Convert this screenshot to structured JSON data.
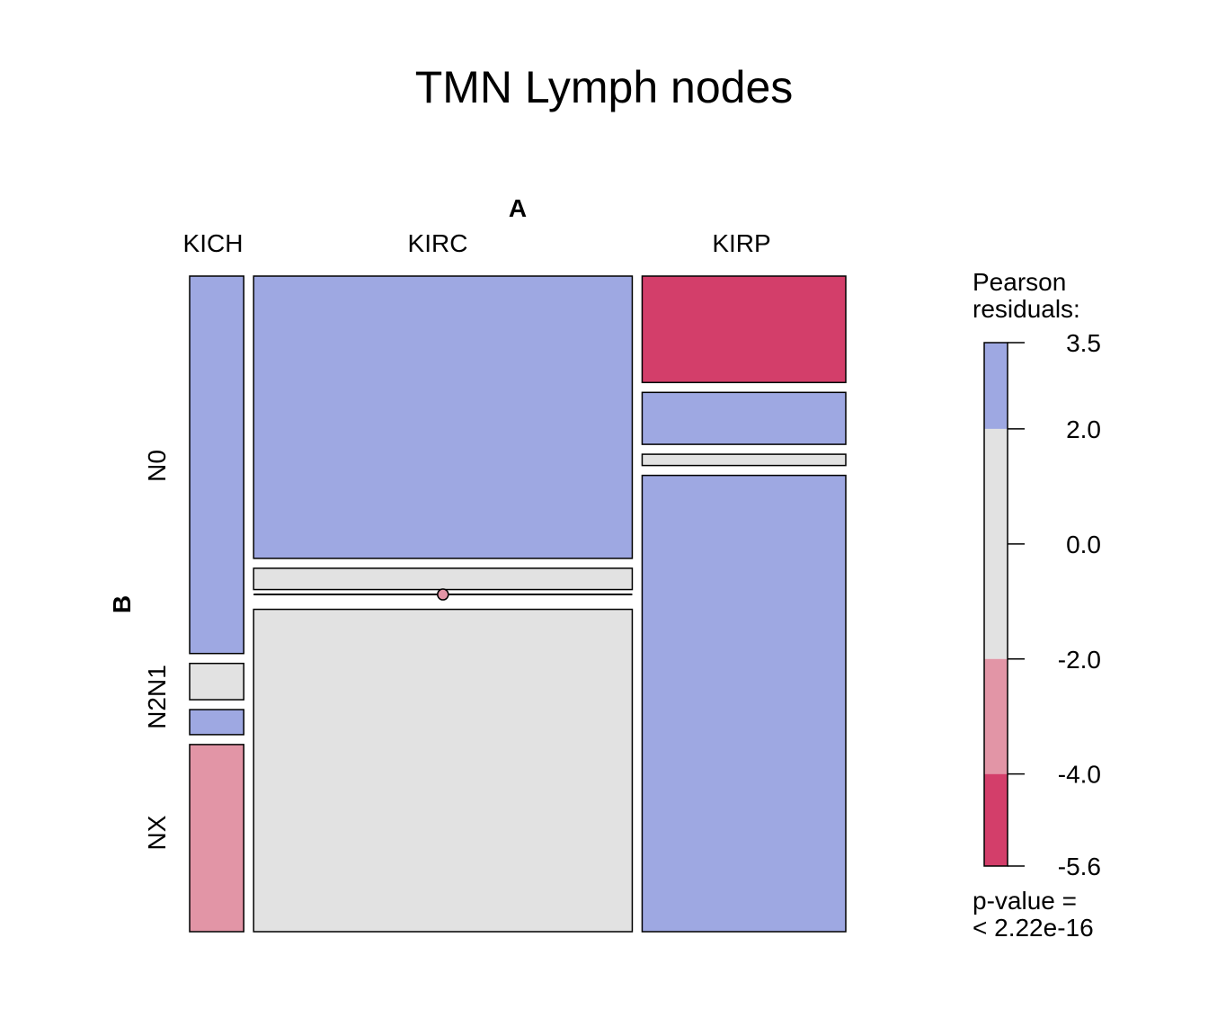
{
  "chart_data": {
    "type": "mosaic",
    "title": "TMN Lymph nodes",
    "x_variable": "A",
    "y_variable": "B",
    "x_categories": [
      "KICH",
      "KIRC",
      "KIRP"
    ],
    "y_categories": [
      "N0",
      "N2N1",
      "NX"
    ],
    "column_proportions": [
      0.085,
      0.595,
      0.32
    ],
    "cells": [
      {
        "column": "KICH",
        "levels": [
          {
            "level": "N0",
            "proportion": 0.603,
            "shade": "blue"
          },
          {
            "level": "N1",
            "proportion": 0.058,
            "shade": "grey"
          },
          {
            "level": "N2",
            "proportion": 0.04,
            "shade": "blue"
          },
          {
            "level": "NX",
            "proportion": 0.299,
            "shade": "pink"
          }
        ]
      },
      {
        "column": "KIRC",
        "levels": [
          {
            "level": "N0",
            "proportion": 0.451,
            "shade": "blue"
          },
          {
            "level": "N1",
            "proportion": 0.034,
            "shade": "grey"
          },
          {
            "level": "N2",
            "proportion": 0.0,
            "shade": "empty"
          },
          {
            "level": "NX",
            "proportion": 0.515,
            "shade": "grey"
          }
        ]
      },
      {
        "column": "KIRP",
        "levels": [
          {
            "level": "N0",
            "proportion": 0.17,
            "shade": "red"
          },
          {
            "level": "N1",
            "proportion": 0.083,
            "shade": "blue"
          },
          {
            "level": "N2",
            "proportion": 0.018,
            "shade": "grey"
          },
          {
            "level": "NX",
            "proportion": 0.729,
            "shade": "blue"
          }
        ]
      }
    ],
    "legend": {
      "title_line1": "Pearson",
      "title_line2": "residuals:",
      "ticks": [
        "3.5",
        "2.0",
        "0.0",
        "-2.0",
        "-4.0",
        "-5.6"
      ],
      "tick_values": [
        3.5,
        2.0,
        0.0,
        -2.0,
        -4.0,
        -5.6
      ],
      "bands": [
        {
          "from": 2.0,
          "to": 3.5,
          "shade": "blue"
        },
        {
          "from": -2.0,
          "to": 2.0,
          "shade": "grey"
        },
        {
          "from": -4.0,
          "to": -2.0,
          "shade": "pink"
        },
        {
          "from": -5.6,
          "to": -4.0,
          "shade": "red"
        }
      ],
      "pvalue_line1": "p-value =",
      "pvalue_line2": "< 2.22e-16"
    },
    "colors": {
      "blue": "#9ea8e2",
      "grey": "#e2e2e2",
      "pink": "#e295a6",
      "red": "#d33e6a",
      "empty": "#e295a6"
    }
  }
}
